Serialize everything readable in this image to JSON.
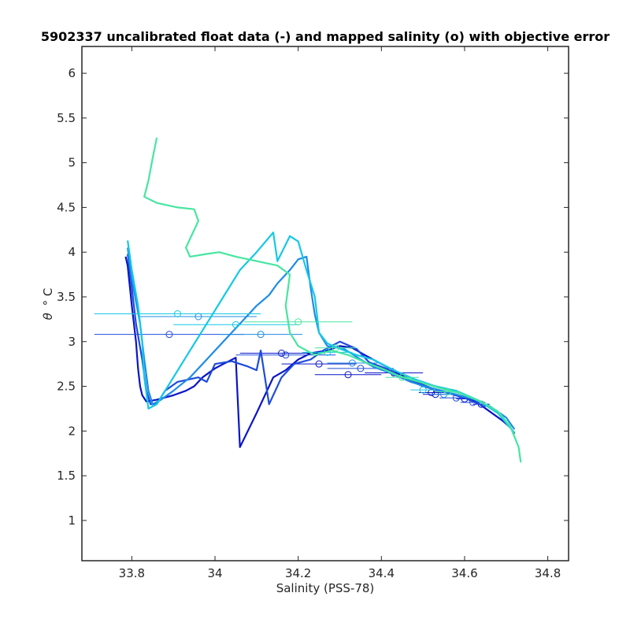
{
  "chart_data": {
    "type": "line",
    "title": "5902337 uncalibrated float data (-) and mapped salinity (o) with objective error",
    "xlabel": "Salinity (PSS-78)",
    "ylabel_symbol": "θ",
    "ylabel_unit": "° C",
    "xlim": [
      33.68,
      34.85
    ],
    "ylim": [
      0.55,
      6.3
    ],
    "xticks": [
      33.8,
      34,
      34.2,
      34.4,
      34.6,
      34.8
    ],
    "xtick_labels": [
      "33.8",
      "34",
      "34.2",
      "34.4",
      "34.6",
      "34.8"
    ],
    "yticks": [
      1,
      1.5,
      2,
      2.5,
      3,
      3.5,
      4,
      4.5,
      5,
      5.5,
      6
    ],
    "ytick_labels": [
      "1",
      "1.5",
      "2",
      "2.5",
      "3",
      "3.5",
      "4",
      "4.5",
      "5",
      "5.5",
      "6"
    ],
    "grid": false,
    "series": [
      {
        "color": "#0a14c8",
        "profile": [
          [
            33.785,
            3.95
          ],
          [
            33.79,
            3.85
          ],
          [
            33.8,
            3.4
          ],
          [
            33.81,
            3.0
          ],
          [
            33.815,
            2.7
          ],
          [
            33.82,
            2.5
          ],
          [
            33.825,
            2.4
          ],
          [
            33.835,
            2.33
          ],
          [
            33.86,
            2.35
          ],
          [
            33.9,
            2.4
          ],
          [
            33.93,
            2.45
          ],
          [
            33.95,
            2.5
          ],
          [
            33.97,
            2.6
          ],
          [
            34.0,
            2.7
          ],
          [
            34.02,
            2.75
          ],
          [
            34.05,
            2.82
          ],
          [
            34.06,
            1.82
          ],
          [
            34.1,
            2.2
          ],
          [
            34.14,
            2.6
          ],
          [
            34.17,
            2.68
          ],
          [
            34.2,
            2.8
          ],
          [
            34.23,
            2.87
          ],
          [
            34.27,
            2.9
          ],
          [
            34.3,
            2.95
          ],
          [
            34.33,
            2.93
          ],
          [
            34.36,
            2.85
          ],
          [
            34.38,
            2.8
          ],
          [
            34.4,
            2.75
          ],
          [
            34.42,
            2.7
          ],
          [
            34.45,
            2.62
          ],
          [
            34.48,
            2.55
          ],
          [
            34.52,
            2.48
          ],
          [
            34.56,
            2.43
          ],
          [
            34.6,
            2.38
          ],
          [
            34.63,
            2.32
          ],
          [
            34.66,
            2.22
          ],
          [
            34.69,
            2.12
          ],
          [
            34.71,
            2.04
          ],
          [
            34.72,
            1.97
          ]
        ],
        "mapped": [
          [
            34.32,
            2.63
          ],
          [
            34.25,
            2.75
          ],
          [
            34.16,
            2.87
          ],
          [
            34.43,
            2.65
          ],
          [
            34.52,
            2.43
          ],
          [
            34.53,
            2.41
          ],
          [
            34.6,
            2.36
          ],
          [
            34.64,
            2.3
          ]
        ],
        "error": [
          0.08,
          0.09,
          0.1,
          0.07,
          0.03,
          0.03,
          0.02,
          0.02
        ]
      },
      {
        "color": "#1e4bdc",
        "profile": [
          [
            33.79,
            3.98
          ],
          [
            33.8,
            3.6
          ],
          [
            33.81,
            3.2
          ],
          [
            33.825,
            2.8
          ],
          [
            33.835,
            2.45
          ],
          [
            33.845,
            2.3
          ],
          [
            33.86,
            2.3
          ],
          [
            33.88,
            2.45
          ],
          [
            33.91,
            2.55
          ],
          [
            33.96,
            2.6
          ],
          [
            33.98,
            2.55
          ],
          [
            34.0,
            2.75
          ],
          [
            34.04,
            2.78
          ],
          [
            34.08,
            2.72
          ],
          [
            34.1,
            2.68
          ],
          [
            34.11,
            2.9
          ],
          [
            34.13,
            2.3
          ],
          [
            34.16,
            2.6
          ],
          [
            34.19,
            2.75
          ],
          [
            34.23,
            2.8
          ],
          [
            34.26,
            2.9
          ],
          [
            34.3,
            3.0
          ],
          [
            34.34,
            2.92
          ],
          [
            34.37,
            2.77
          ],
          [
            34.41,
            2.7
          ],
          [
            34.45,
            2.6
          ],
          [
            34.5,
            2.5
          ],
          [
            34.55,
            2.44
          ],
          [
            34.6,
            2.37
          ],
          [
            34.65,
            2.27
          ]
        ],
        "mapped": [
          [
            33.89,
            3.08
          ],
          [
            34.17,
            2.85
          ],
          [
            34.35,
            2.7
          ],
          [
            34.58,
            2.37
          ],
          [
            34.62,
            2.32
          ]
        ],
        "error": [
          0.18,
          0.12,
          0.08,
          0.04,
          0.03
        ]
      },
      {
        "color": "#1e8ce6",
        "profile": [
          [
            33.79,
            4.05
          ],
          [
            33.8,
            3.7
          ],
          [
            33.82,
            3.2
          ],
          [
            33.83,
            2.8
          ],
          [
            33.84,
            2.45
          ],
          [
            33.85,
            2.3
          ],
          [
            33.87,
            2.35
          ],
          [
            33.9,
            2.45
          ],
          [
            33.94,
            2.6
          ],
          [
            33.98,
            2.8
          ],
          [
            34.02,
            3.0
          ],
          [
            34.06,
            3.2
          ],
          [
            34.1,
            3.4
          ],
          [
            34.13,
            3.52
          ],
          [
            34.15,
            3.65
          ],
          [
            34.18,
            3.8
          ],
          [
            34.2,
            3.92
          ],
          [
            34.22,
            3.95
          ],
          [
            34.23,
            3.6
          ],
          [
            34.24,
            3.3
          ],
          [
            34.25,
            3.1
          ],
          [
            34.27,
            2.95
          ],
          [
            34.31,
            2.92
          ],
          [
            34.35,
            2.8
          ],
          [
            34.38,
            2.72
          ],
          [
            34.42,
            2.65
          ],
          [
            34.47,
            2.55
          ],
          [
            34.52,
            2.48
          ],
          [
            34.57,
            2.42
          ],
          [
            34.62,
            2.36
          ],
          [
            34.66,
            2.28
          ],
          [
            34.7,
            2.15
          ],
          [
            34.72,
            2.02
          ]
        ],
        "mapped": [
          [
            33.96,
            3.28
          ],
          [
            34.11,
            3.08
          ],
          [
            34.33,
            2.76
          ],
          [
            34.55,
            2.41
          ]
        ],
        "error": [
          0.14,
          0.1,
          0.06,
          0.03
        ]
      },
      {
        "color": "#14c8e6",
        "profile": [
          [
            33.79,
            4.13
          ],
          [
            33.8,
            3.8
          ],
          [
            33.815,
            3.4
          ],
          [
            33.825,
            3.0
          ],
          [
            33.83,
            2.6
          ],
          [
            33.84,
            2.25
          ],
          [
            33.86,
            2.3
          ],
          [
            33.9,
            2.6
          ],
          [
            33.94,
            2.9
          ],
          [
            33.98,
            3.2
          ],
          [
            34.02,
            3.5
          ],
          [
            34.06,
            3.8
          ],
          [
            34.1,
            4.0
          ],
          [
            34.14,
            4.22
          ],
          [
            34.15,
            3.9
          ],
          [
            34.18,
            4.18
          ],
          [
            34.2,
            4.12
          ],
          [
            34.22,
            3.8
          ],
          [
            34.24,
            3.5
          ],
          [
            34.25,
            3.1
          ],
          [
            34.27,
            2.98
          ],
          [
            34.3,
            2.92
          ],
          [
            34.34,
            2.85
          ],
          [
            34.38,
            2.8
          ],
          [
            34.43,
            2.68
          ],
          [
            34.48,
            2.58
          ],
          [
            34.53,
            2.5
          ],
          [
            34.58,
            2.45
          ],
          [
            34.63,
            2.35
          ],
          [
            34.68,
            2.2
          ],
          [
            34.72,
            1.98
          ]
        ],
        "mapped": [
          [
            33.91,
            3.31
          ],
          [
            34.05,
            3.19
          ],
          [
            34.27,
            2.88
          ],
          [
            34.5,
            2.46
          ]
        ],
        "error": [
          0.2,
          0.15,
          0.06,
          0.03
        ]
      },
      {
        "color": "#46e6a0",
        "profile": [
          [
            33.86,
            5.28
          ],
          [
            33.85,
            5.05
          ],
          [
            33.84,
            4.8
          ],
          [
            33.83,
            4.62
          ],
          [
            33.86,
            4.55
          ],
          [
            33.91,
            4.5
          ],
          [
            33.95,
            4.48
          ],
          [
            33.96,
            4.35
          ],
          [
            33.93,
            4.05
          ],
          [
            33.94,
            3.95
          ],
          [
            33.98,
            3.98
          ],
          [
            34.01,
            4.0
          ],
          [
            34.05,
            3.95
          ],
          [
            34.1,
            3.9
          ],
          [
            34.15,
            3.85
          ],
          [
            34.18,
            3.75
          ],
          [
            34.17,
            3.4
          ],
          [
            34.18,
            3.1
          ],
          [
            34.2,
            2.95
          ],
          [
            34.24,
            2.85
          ],
          [
            34.28,
            2.9
          ],
          [
            34.32,
            2.85
          ],
          [
            34.36,
            2.77
          ],
          [
            34.4,
            2.7
          ],
          [
            34.44,
            2.62
          ],
          [
            34.49,
            2.55
          ],
          [
            34.54,
            2.48
          ],
          [
            34.59,
            2.42
          ],
          [
            34.64,
            2.33
          ],
          [
            34.68,
            2.22
          ],
          [
            34.71,
            2.05
          ],
          [
            34.73,
            1.82
          ],
          [
            34.735,
            1.65
          ]
        ],
        "mapped": [
          [
            34.2,
            3.22
          ],
          [
            34.29,
            2.93
          ],
          [
            34.45,
            2.6
          ],
          [
            34.56,
            2.44
          ]
        ],
        "error": [
          0.13,
          0.05,
          0.04,
          0.03
        ]
      }
    ]
  }
}
